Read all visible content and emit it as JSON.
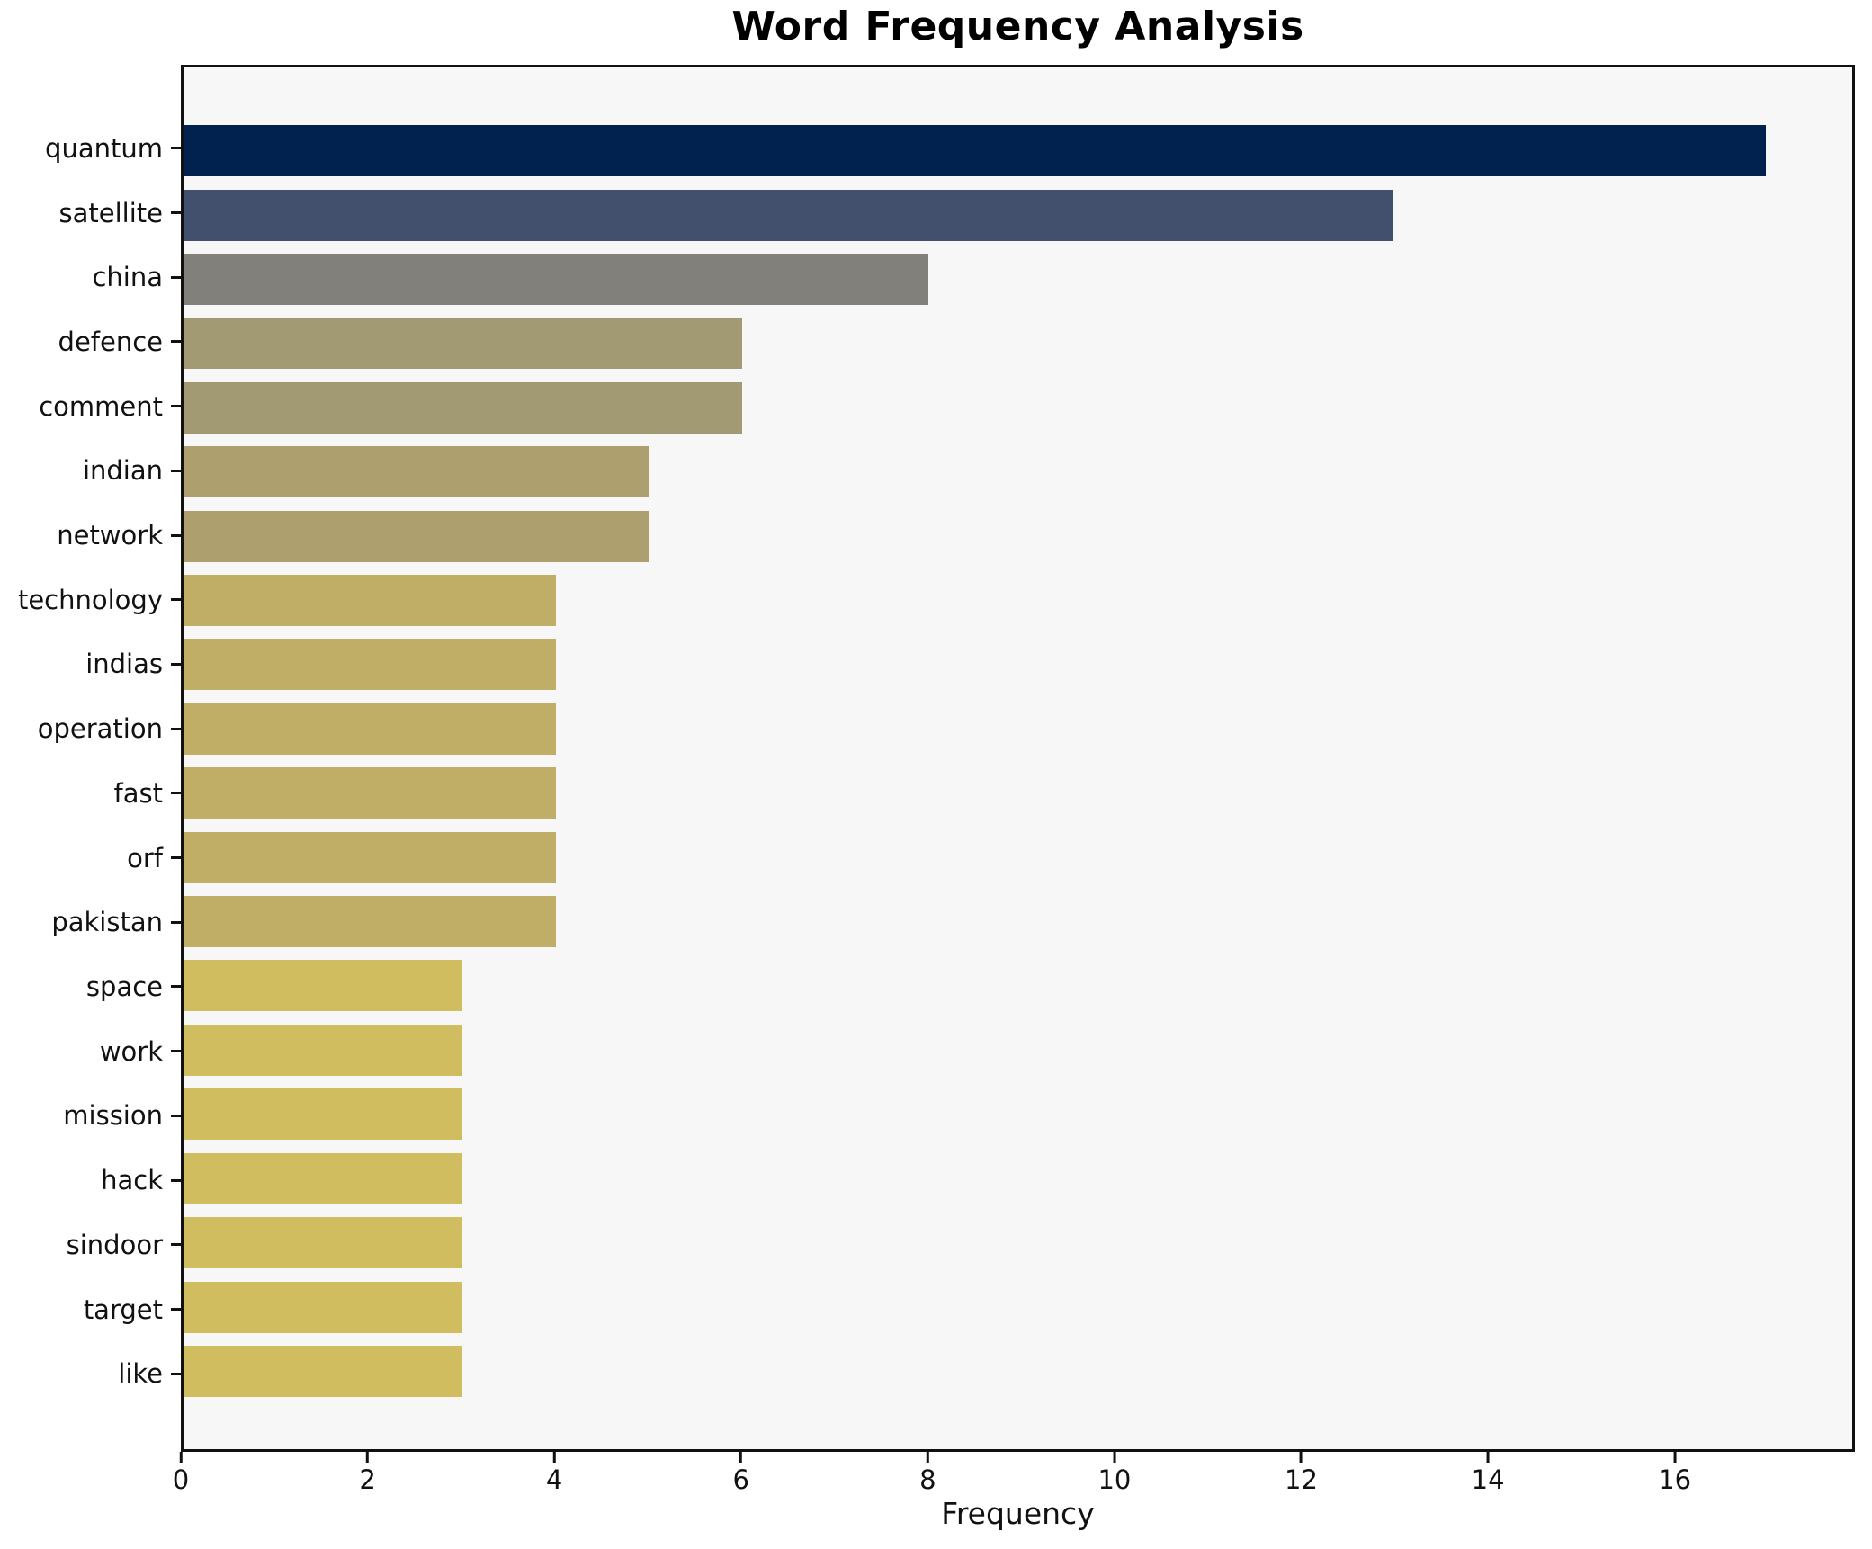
{
  "title": "Word Frequency Analysis",
  "xlabel": "Frequency",
  "chart_data": {
    "type": "bar",
    "orientation": "horizontal",
    "title": "Word Frequency Analysis",
    "xlabel": "Frequency",
    "ylabel": "",
    "xlim": [
      0,
      17.93
    ],
    "xticks": [
      0,
      2,
      4,
      6,
      8,
      10,
      12,
      14,
      16
    ],
    "grid": false,
    "legend": "none",
    "plot_background": "#f7f7f7",
    "figure_background": "#ffffff",
    "spine_color": "#111111",
    "categories": [
      "quantum",
      "satellite",
      "china",
      "defence",
      "comment",
      "indian",
      "network",
      "technology",
      "indias",
      "operation",
      "fast",
      "orf",
      "pakistan",
      "space",
      "work",
      "mission",
      "hack",
      "sindoor",
      "target",
      "like"
    ],
    "values": [
      17,
      13,
      8,
      6,
      6,
      5,
      5,
      4,
      4,
      4,
      4,
      4,
      4,
      3,
      3,
      3,
      3,
      3,
      3,
      3
    ],
    "bar_colors": [
      "#01214e",
      "#42506e",
      "#82807a",
      "#a29a72",
      "#a29a72",
      "#ada06e",
      "#ada06e",
      "#c0ae67",
      "#c0ae67",
      "#c0ae67",
      "#c0ae67",
      "#c0ae67",
      "#c0ae67",
      "#d0bd60",
      "#d0bd60",
      "#d0bd60",
      "#d0bd60",
      "#d0bd60",
      "#d0bd60",
      "#d0bd60"
    ]
  }
}
